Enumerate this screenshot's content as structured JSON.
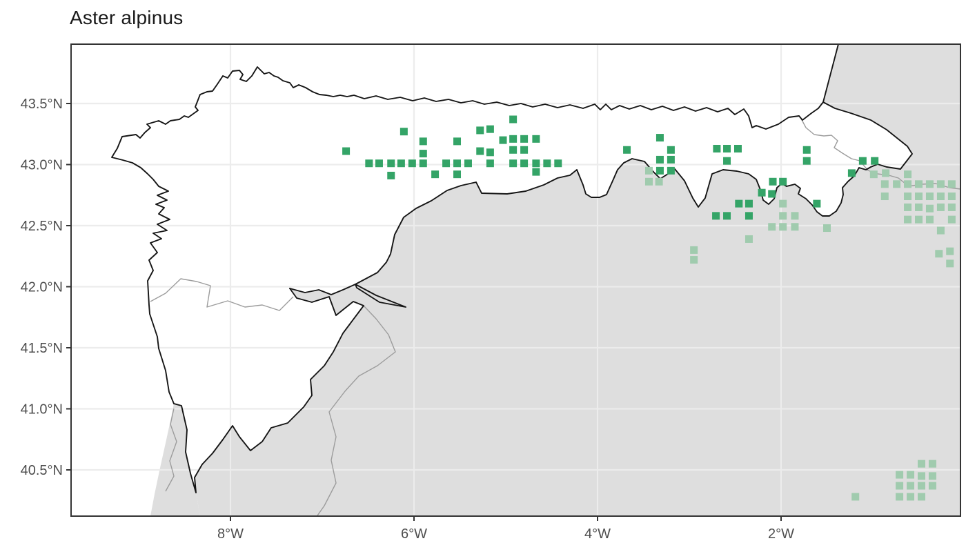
{
  "title": "Aster alpinus",
  "axes": {
    "x": {
      "ticks": [
        {
          "label": "8°W",
          "lon": -8
        },
        {
          "label": "6°W",
          "lon": -6
        },
        {
          "label": "4°W",
          "lon": -4
        },
        {
          "label": "2°W",
          "lon": -2
        }
      ]
    },
    "y": {
      "ticks": [
        {
          "label": "43.5°N",
          "lat": 43.5
        },
        {
          "label": "43.0°N",
          "lat": 43.0
        },
        {
          "label": "42.5°N",
          "lat": 42.5
        },
        {
          "label": "42.0°N",
          "lat": 42.0
        },
        {
          "label": "41.5°N",
          "lat": 41.5
        },
        {
          "label": "41.0°N",
          "lat": 41.0
        },
        {
          "label": "40.5°N",
          "lat": 40.5
        }
      ]
    }
  },
  "colors": {
    "present_in_region": "#34A467",
    "present_outside_region": "#A0CBAE",
    "outside_region_fill": "#DEDEDE",
    "gridline": "#ECECEC",
    "panel_border": "#333333",
    "region_outline": "#151515",
    "admin_border": "#9C9C9C",
    "axis_text": "#4D4D4D",
    "title_text": "#1A1A1A"
  },
  "chart_data": {
    "type": "scatter",
    "title": "Aster alpinus",
    "xlabel": "",
    "ylabel": "",
    "x_range_lon": [
      -9.74,
      0.0
    ],
    "y_range_lat": [
      40.12,
      43.99
    ],
    "grid": true,
    "legend": "none",
    "series": [
      {
        "name": "occurrences-in-focal-region",
        "marker": "square",
        "color": "#34A467",
        "points": [
          [
            -6.74,
            43.11
          ],
          [
            -6.11,
            43.27
          ],
          [
            -5.9,
            43.19
          ],
          [
            -5.9,
            43.09
          ],
          [
            -5.53,
            43.19
          ],
          [
            -5.28,
            43.28
          ],
          [
            -5.17,
            43.29
          ],
          [
            -4.92,
            43.37
          ],
          [
            -5.03,
            43.2
          ],
          [
            -4.92,
            43.21
          ],
          [
            -4.8,
            43.21
          ],
          [
            -4.67,
            43.21
          ],
          [
            -5.28,
            43.11
          ],
          [
            -5.17,
            43.1
          ],
          [
            -4.92,
            43.12
          ],
          [
            -4.8,
            43.12
          ],
          [
            -6.49,
            43.01
          ],
          [
            -6.38,
            43.01
          ],
          [
            -6.25,
            43.01
          ],
          [
            -6.14,
            43.01
          ],
          [
            -6.02,
            43.01
          ],
          [
            -5.9,
            43.01
          ],
          [
            -5.65,
            43.01
          ],
          [
            -5.53,
            43.01
          ],
          [
            -5.41,
            43.01
          ],
          [
            -5.17,
            43.01
          ],
          [
            -4.92,
            43.01
          ],
          [
            -4.8,
            43.01
          ],
          [
            -4.67,
            43.01
          ],
          [
            -4.55,
            43.01
          ],
          [
            -4.43,
            43.01
          ],
          [
            -6.25,
            42.91
          ],
          [
            -5.77,
            42.92
          ],
          [
            -5.53,
            42.92
          ],
          [
            -4.67,
            42.94
          ],
          [
            -3.68,
            43.12
          ],
          [
            -3.32,
            43.22
          ],
          [
            -3.2,
            43.12
          ],
          [
            -3.32,
            43.04
          ],
          [
            -3.2,
            43.04
          ],
          [
            -3.32,
            42.95
          ],
          [
            -3.2,
            42.95
          ],
          [
            -2.7,
            43.13
          ],
          [
            -2.59,
            43.13
          ],
          [
            -2.47,
            43.13
          ],
          [
            -2.59,
            43.03
          ],
          [
            -1.72,
            43.12
          ],
          [
            -1.72,
            43.03
          ],
          [
            -2.09,
            42.86
          ],
          [
            -1.98,
            42.86
          ],
          [
            -2.21,
            42.77
          ],
          [
            -2.1,
            42.76
          ],
          [
            -2.46,
            42.68
          ],
          [
            -2.35,
            42.68
          ],
          [
            -1.61,
            42.68
          ],
          [
            -2.71,
            42.58
          ],
          [
            -2.59,
            42.58
          ],
          [
            -2.35,
            42.58
          ],
          [
            -1.23,
            42.93
          ],
          [
            -1.11,
            43.03
          ],
          [
            -0.98,
            43.03
          ]
        ]
      },
      {
        "name": "occurrences-outside-focal-region",
        "marker": "square",
        "color": "#A0CBAE",
        "points": [
          [
            -3.44,
            42.95
          ],
          [
            -3.44,
            42.86
          ],
          [
            -3.33,
            42.86
          ],
          [
            -0.99,
            42.92
          ],
          [
            -0.86,
            42.93
          ],
          [
            -0.62,
            42.92
          ],
          [
            -0.87,
            42.84
          ],
          [
            -0.74,
            42.84
          ],
          [
            -0.62,
            42.84
          ],
          [
            -0.5,
            42.84
          ],
          [
            -0.38,
            42.84
          ],
          [
            -0.26,
            42.84
          ],
          [
            -0.14,
            42.84
          ],
          [
            -0.87,
            42.74
          ],
          [
            -0.62,
            42.74
          ],
          [
            -0.5,
            42.74
          ],
          [
            -0.38,
            42.74
          ],
          [
            -0.26,
            42.74
          ],
          [
            -0.14,
            42.74
          ],
          [
            -0.62,
            42.65
          ],
          [
            -0.5,
            42.65
          ],
          [
            -0.38,
            42.64
          ],
          [
            -0.26,
            42.65
          ],
          [
            -0.14,
            42.65
          ],
          [
            -0.62,
            42.55
          ],
          [
            -0.5,
            42.55
          ],
          [
            -0.38,
            42.55
          ],
          [
            -0.14,
            42.55
          ],
          [
            -0.26,
            42.46
          ],
          [
            -1.98,
            42.68
          ],
          [
            -1.98,
            42.58
          ],
          [
            -1.85,
            42.58
          ],
          [
            -2.1,
            42.49
          ],
          [
            -1.98,
            42.49
          ],
          [
            -1.85,
            42.49
          ],
          [
            -1.5,
            42.48
          ],
          [
            -2.35,
            42.39
          ],
          [
            -2.95,
            42.3
          ],
          [
            -2.95,
            42.22
          ],
          [
            -0.28,
            42.27
          ],
          [
            -0.16,
            42.29
          ],
          [
            -0.16,
            42.19
          ],
          [
            -0.47,
            40.55
          ],
          [
            -0.35,
            40.55
          ],
          [
            -0.71,
            40.46
          ],
          [
            -0.59,
            40.46
          ],
          [
            -0.47,
            40.45
          ],
          [
            -0.35,
            40.45
          ],
          [
            -0.71,
            40.37
          ],
          [
            -0.59,
            40.37
          ],
          [
            -0.47,
            40.37
          ],
          [
            -0.35,
            40.37
          ],
          [
            -0.71,
            40.28
          ],
          [
            -0.59,
            40.28
          ],
          [
            -0.47,
            40.28
          ],
          [
            -1.19,
            40.28
          ]
        ]
      }
    ]
  }
}
